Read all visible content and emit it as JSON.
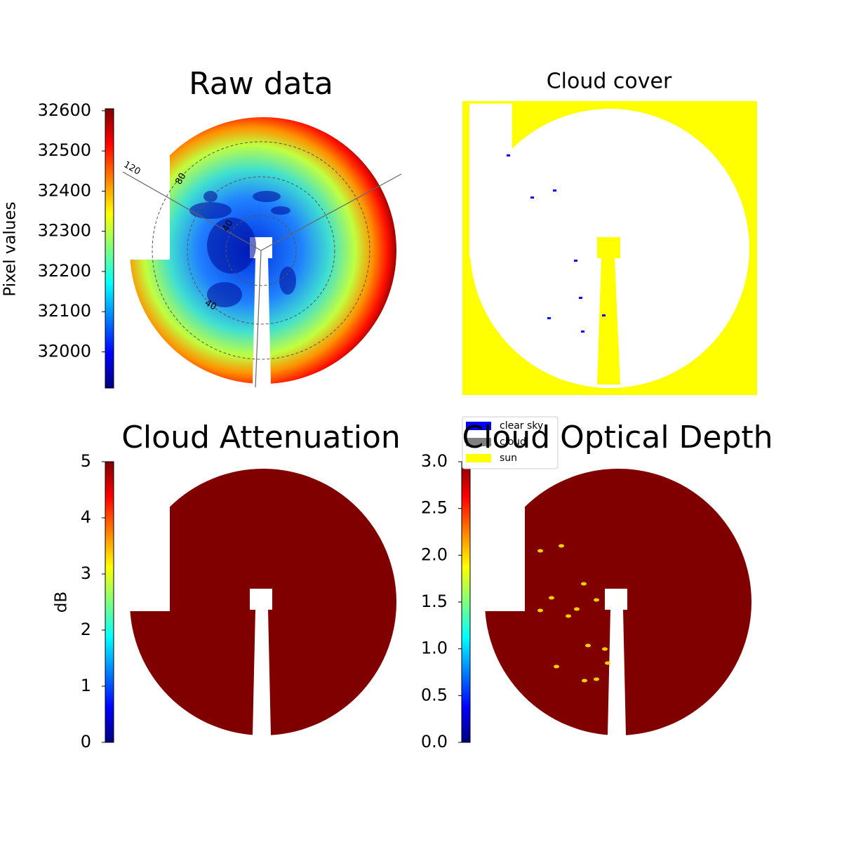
{
  "chart_data": [
    {
      "type": "heatmap",
      "title": "Raw data",
      "colorbar_label": "Pixel values",
      "colormap": "jet",
      "ylim": [
        31910,
        32605
      ],
      "yticks": [
        32000,
        32100,
        32200,
        32300,
        32400,
        32500,
        32600
      ],
      "annotations": [
        "120",
        "80",
        "40",
        "40"
      ]
    },
    {
      "type": "mask",
      "title": "Cloud cover",
      "series": [
        {
          "name": "clear sky",
          "color": "#0000ff"
        },
        {
          "name": "cloud",
          "color": "#808080"
        },
        {
          "name": "sun",
          "color": "#ffff00"
        }
      ]
    },
    {
      "type": "heatmap",
      "title": "Cloud Attenuation",
      "colorbar_label": "dB",
      "colormap": "jet",
      "ylim": [
        0,
        5
      ],
      "yticks": [
        0,
        1,
        2,
        3,
        4,
        5
      ]
    },
    {
      "type": "heatmap",
      "title": "Cloud Optical Depth",
      "colormap": "jet",
      "ylim": [
        0,
        3
      ],
      "yticks": [
        {
          "value": 0,
          "label": "0.0"
        },
        {
          "value": 0.5,
          "label": "0.5"
        },
        {
          "value": 1,
          "label": "1.0"
        },
        {
          "value": 1.5,
          "label": "1.5"
        },
        {
          "value": 2,
          "label": "2.0"
        },
        {
          "value": 2.5,
          "label": "2.5"
        },
        {
          "value": 3,
          "label": "3.0"
        }
      ]
    }
  ]
}
